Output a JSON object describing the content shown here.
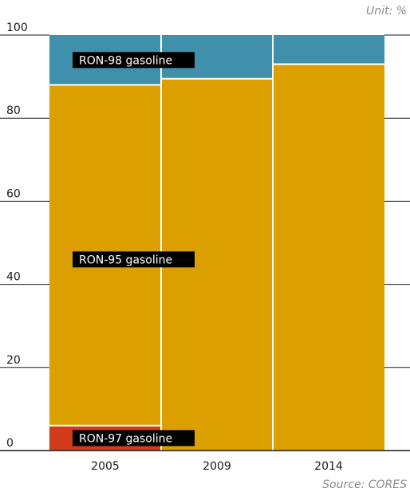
{
  "chart_data": {
    "type": "bar",
    "stacked": true,
    "unit_label": "Unit: %",
    "source": "Source: CORES",
    "categories": [
      "2005",
      "2009",
      "2014"
    ],
    "ylim": [
      0,
      100
    ],
    "yticks": [
      "0",
      "20",
      "40",
      "60",
      "80",
      "100"
    ],
    "grid": false,
    "series": [
      {
        "name": "RON-97 gasoline",
        "color": "#d2391d",
        "values": [
          6,
          0,
          0
        ]
      },
      {
        "name": "RON-95 gasoline",
        "color": "#dc9f00",
        "values": [
          82,
          89.5,
          93
        ]
      },
      {
        "name": "RON-98 gasoline",
        "color": "#3f90ab",
        "values": [
          12,
          10.5,
          7
        ]
      }
    ]
  }
}
